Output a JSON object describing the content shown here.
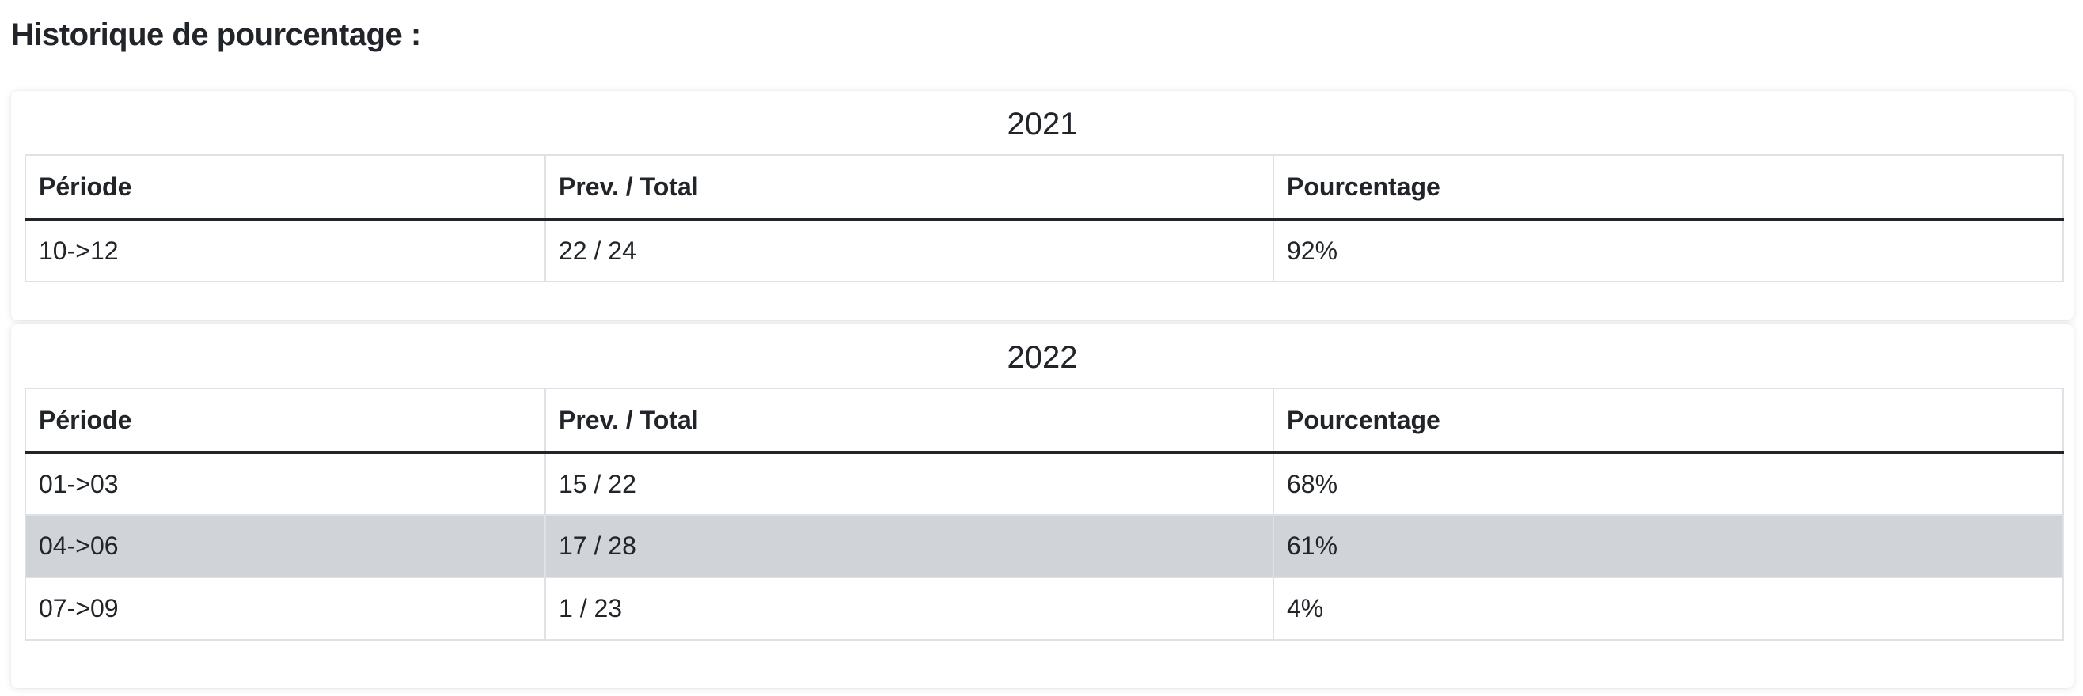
{
  "page": {
    "title": "Historique de pourcentage :"
  },
  "tables": [
    {
      "year": "2021",
      "headers": [
        "Période",
        "Prev. / Total",
        "Pourcentage"
      ],
      "rows": [
        {
          "periode": "10->12",
          "prev_total": "22 / 24",
          "pourcentage": "92%"
        }
      ]
    },
    {
      "year": "2022",
      "headers": [
        "Période",
        "Prev. / Total",
        "Pourcentage"
      ],
      "rows": [
        {
          "periode": "01->03",
          "prev_total": "15 / 22",
          "pourcentage": "68%"
        },
        {
          "periode": "04->06",
          "prev_total": "17 / 28",
          "pourcentage": "61%",
          "highlighted": true
        },
        {
          "periode": "07->09",
          "prev_total": "1 / 23",
          "pourcentage": "4%"
        }
      ]
    }
  ],
  "colors": {
    "text": "#212529",
    "border": "#dee2e6",
    "header_rule": "#212529",
    "highlight_row": "#d0d4d9",
    "background": "#ffffff"
  }
}
